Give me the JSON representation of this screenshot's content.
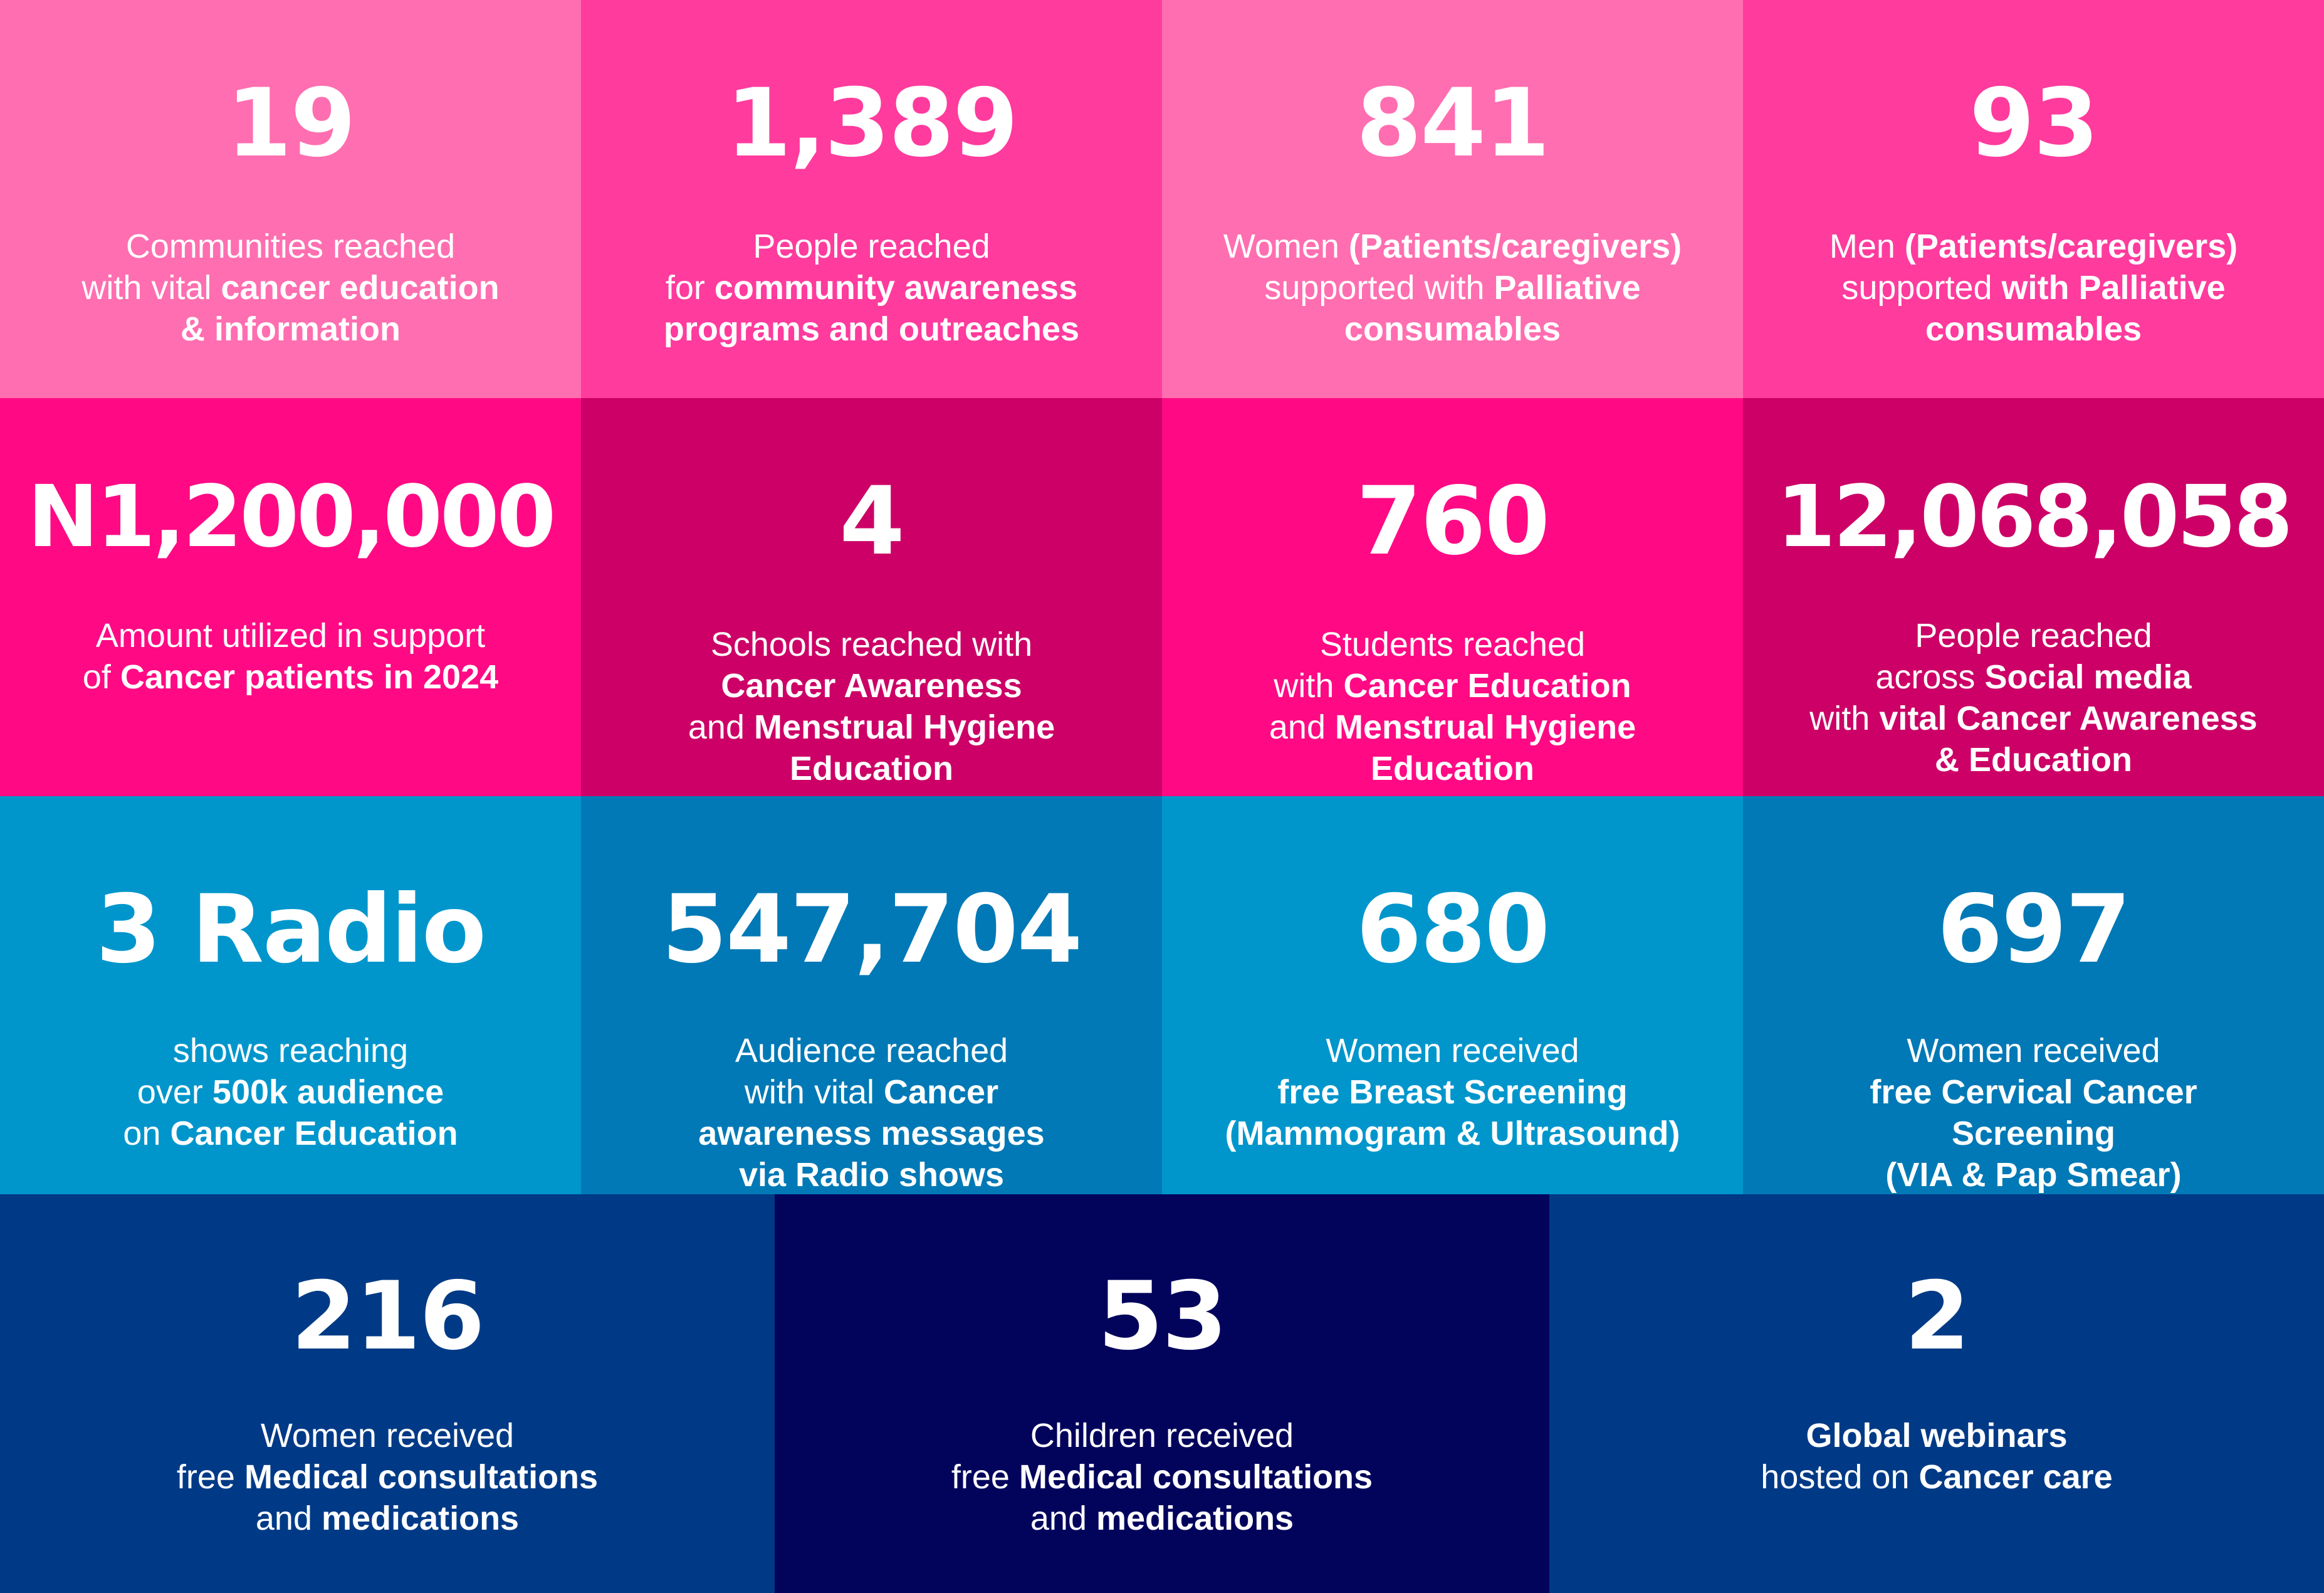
{
  "colors": {
    "pink_light": "#ff6eb0",
    "pink_mid": "#ff3b9d",
    "magenta": "#ff0a84",
    "magenta_dark": "#cc0066",
    "blue_light": "#0096cc",
    "blue_mid": "#0079b6",
    "navy": "#003a86",
    "navy_dark": "#02045c"
  },
  "stats": [
    {
      "value": "19",
      "lines": [
        [
          {
            "t": "Communities reached",
            "b": false
          }
        ],
        [
          {
            "t": "with vital ",
            "b": false
          },
          {
            "t": "cancer education",
            "b": true
          }
        ],
        [
          {
            "t": "& information",
            "b": true
          }
        ]
      ]
    },
    {
      "value": "1,389",
      "lines": [
        [
          {
            "t": "People reached",
            "b": false
          }
        ],
        [
          {
            "t": "for ",
            "b": false
          },
          {
            "t": "community awareness",
            "b": true
          }
        ],
        [
          {
            "t": "programs and outreaches",
            "b": true
          }
        ]
      ]
    },
    {
      "value": "841",
      "lines": [
        [
          {
            "t": "Women ",
            "b": false
          },
          {
            "t": "(Patients/caregivers)",
            "b": true
          }
        ],
        [
          {
            "t": "supported with ",
            "b": false
          },
          {
            "t": "Palliative",
            "b": true
          }
        ],
        [
          {
            "t": "consumables",
            "b": true
          }
        ]
      ]
    },
    {
      "value": "93",
      "lines": [
        [
          {
            "t": "Men ",
            "b": false
          },
          {
            "t": "(Patients/caregivers)",
            "b": true
          }
        ],
        [
          {
            "t": "supported ",
            "b": false
          },
          {
            "t": "with Palliative",
            "b": true
          }
        ],
        [
          {
            "t": "consumables",
            "b": true
          }
        ]
      ]
    },
    {
      "value": "N1,200,000",
      "lines": [
        [
          {
            "t": "Amount utilized in support",
            "b": false
          }
        ],
        [
          {
            "t": "of ",
            "b": false
          },
          {
            "t": "Cancer patients in 2024",
            "b": true
          }
        ]
      ]
    },
    {
      "value": "4",
      "lines": [
        [
          {
            "t": "Schools reached with",
            "b": false
          }
        ],
        [
          {
            "t": "Cancer Awareness",
            "b": true
          }
        ],
        [
          {
            "t": "and ",
            "b": false
          },
          {
            "t": "Menstrual Hygiene",
            "b": true
          }
        ],
        [
          {
            "t": "Education",
            "b": true
          }
        ]
      ]
    },
    {
      "value": "760",
      "lines": [
        [
          {
            "t": "Students reached",
            "b": false
          }
        ],
        [
          {
            "t": "with ",
            "b": false
          },
          {
            "t": "Cancer Education",
            "b": true
          }
        ],
        [
          {
            "t": "and ",
            "b": false
          },
          {
            "t": "Menstrual Hygiene",
            "b": true
          }
        ],
        [
          {
            "t": "Education",
            "b": true
          }
        ]
      ]
    },
    {
      "value": "12,068,058",
      "lines": [
        [
          {
            "t": "People reached",
            "b": false
          }
        ],
        [
          {
            "t": "across ",
            "b": false
          },
          {
            "t": "Social media",
            "b": true
          }
        ],
        [
          {
            "t": "with ",
            "b": false
          },
          {
            "t": "vital Cancer Awareness",
            "b": true
          }
        ],
        [
          {
            "t": "& Education",
            "b": true
          }
        ]
      ]
    },
    {
      "value": "3 Radio",
      "lines": [
        [
          {
            "t": "shows reaching",
            "b": false
          }
        ],
        [
          {
            "t": "over ",
            "b": false
          },
          {
            "t": "500k audience",
            "b": true
          }
        ],
        [
          {
            "t": "on ",
            "b": false
          },
          {
            "t": "Cancer Education",
            "b": true
          }
        ]
      ]
    },
    {
      "value": "547,704",
      "lines": [
        [
          {
            "t": "Audience reached",
            "b": false
          }
        ],
        [
          {
            "t": "with vital ",
            "b": false
          },
          {
            "t": "Cancer",
            "b": true
          }
        ],
        [
          {
            "t": "awareness messages",
            "b": true
          }
        ],
        [
          {
            "t": "via Radio shows",
            "b": true
          }
        ]
      ]
    },
    {
      "value": "680",
      "lines": [
        [
          {
            "t": "Women received",
            "b": false
          }
        ],
        [
          {
            "t": "free Breast Screening",
            "b": true
          }
        ],
        [
          {
            "t": "(Mammogram & Ultrasound)",
            "b": true
          }
        ]
      ]
    },
    {
      "value": "697",
      "lines": [
        [
          {
            "t": "Women received",
            "b": false
          }
        ],
        [
          {
            "t": "free Cervical Cancer",
            "b": true
          }
        ],
        [
          {
            "t": "Screening",
            "b": true
          }
        ],
        [
          {
            "t": "(VIA & Pap Smear)",
            "b": true
          }
        ]
      ]
    },
    {
      "value": "216",
      "lines": [
        [
          {
            "t": "Women received",
            "b": false
          }
        ],
        [
          {
            "t": "free ",
            "b": false
          },
          {
            "t": "Medical consultations",
            "b": true
          }
        ],
        [
          {
            "t": "and ",
            "b": false
          },
          {
            "t": "medications",
            "b": true
          }
        ]
      ]
    },
    {
      "value": "53",
      "lines": [
        [
          {
            "t": "Children received",
            "b": false
          }
        ],
        [
          {
            "t": "free ",
            "b": false
          },
          {
            "t": "Medical consultations",
            "b": true
          }
        ],
        [
          {
            "t": "and ",
            "b": false
          },
          {
            "t": "medications",
            "b": true
          }
        ]
      ]
    },
    {
      "value": "2",
      "lines": [
        [
          {
            "t": "Global webinars",
            "b": true
          }
        ],
        [
          {
            "t": "hosted on ",
            "b": false
          },
          {
            "t": "Cancer care",
            "b": true
          }
        ]
      ]
    }
  ]
}
